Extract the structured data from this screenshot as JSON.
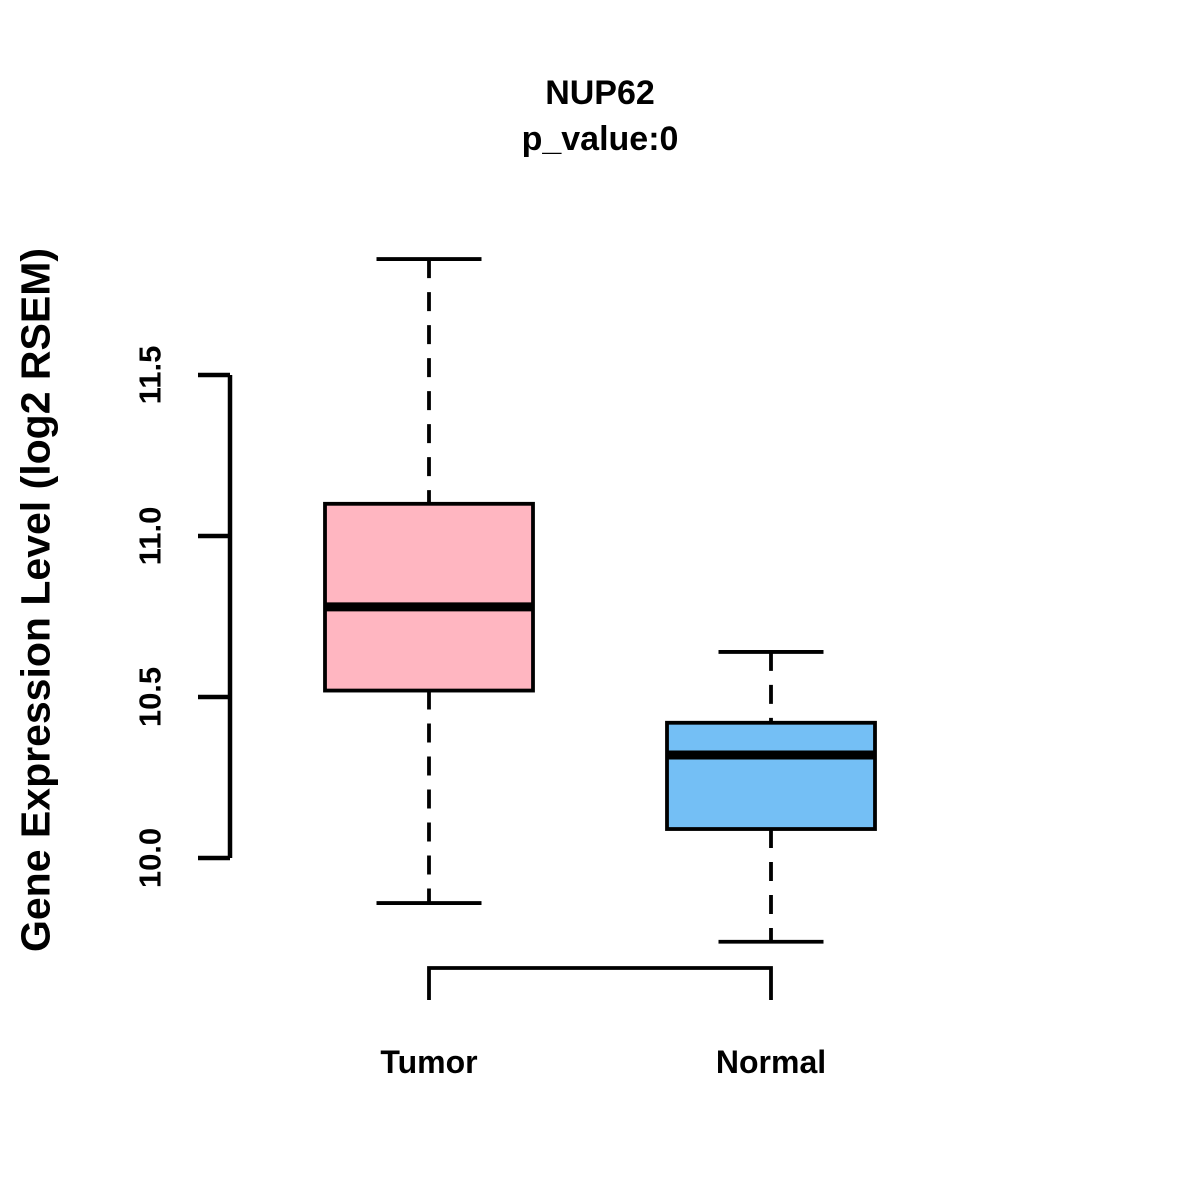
{
  "chart_data": {
    "type": "boxplot",
    "title": "NUP62",
    "subtitle": "p_value:0",
    "ylabel": "Gene Expression Level (log2 RSEM)",
    "xlabel": "",
    "ylim": [
      9.6,
      11.95
    ],
    "yticks": [
      10.0,
      10.5,
      11.0,
      11.5
    ],
    "ytick_labels": [
      "10.0",
      "10.5",
      "11.0",
      "11.5"
    ],
    "categories": [
      "Tumor",
      "Normal"
    ],
    "grid": "off",
    "legend": "none",
    "groups": [
      {
        "label": "Tumor",
        "fill_color": "#FFB6C1",
        "whisker_low": 9.86,
        "q1": 10.52,
        "median": 10.78,
        "q3": 11.1,
        "whisker_high": 11.86
      },
      {
        "label": "Normal",
        "fill_color": "#74BFF5",
        "whisker_low": 9.74,
        "q1": 10.09,
        "median": 10.32,
        "q3": 10.42,
        "whisker_high": 10.64
      }
    ],
    "line_color": "#000000",
    "background_color": "#FFFFFF"
  }
}
